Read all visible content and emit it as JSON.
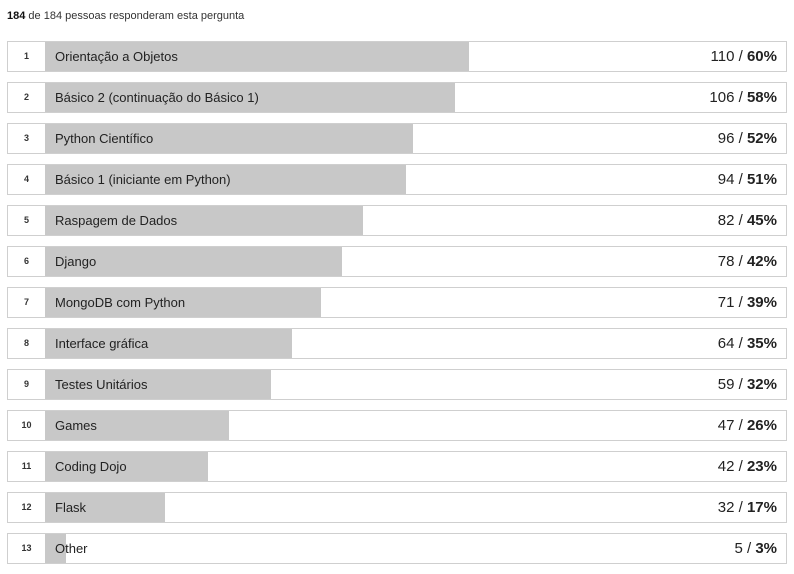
{
  "summary": {
    "answered": "184",
    "text": "de 184 pessoas responderam esta pergunta"
  },
  "colors": {
    "bar": "#c8c8c8",
    "border": "#cfcfcf"
  },
  "chart_data": {
    "type": "bar",
    "orientation": "horizontal",
    "total": 184,
    "categories": [
      "Orientação a Objetos",
      "Básico 2 (continuação do Básico 1)",
      "Python Científico",
      "Básico 1 (iniciante em Python)",
      "Raspagem de Dados",
      "Django",
      "MongoDB com Python",
      "Interface gráfica",
      "Testes Unitários",
      "Games",
      "Coding Dojo",
      "Flask",
      "Other"
    ],
    "ranks": [
      "1",
      "2",
      "3",
      "4",
      "5",
      "6",
      "7",
      "8",
      "9",
      "10",
      "11",
      "12",
      "13"
    ],
    "counts": [
      110,
      106,
      96,
      94,
      82,
      78,
      71,
      64,
      59,
      47,
      42,
      32,
      5
    ],
    "percent_labels": [
      "60%",
      "58%",
      "52%",
      "51%",
      "45%",
      "42%",
      "39%",
      "35%",
      "32%",
      "26%",
      "23%",
      "17%",
      "3%"
    ],
    "values": [
      0.6,
      0.58,
      0.52,
      0.51,
      0.45,
      0.42,
      0.39,
      0.35,
      0.32,
      0.26,
      0.23,
      0.17,
      0.03
    ],
    "separator": " / "
  }
}
